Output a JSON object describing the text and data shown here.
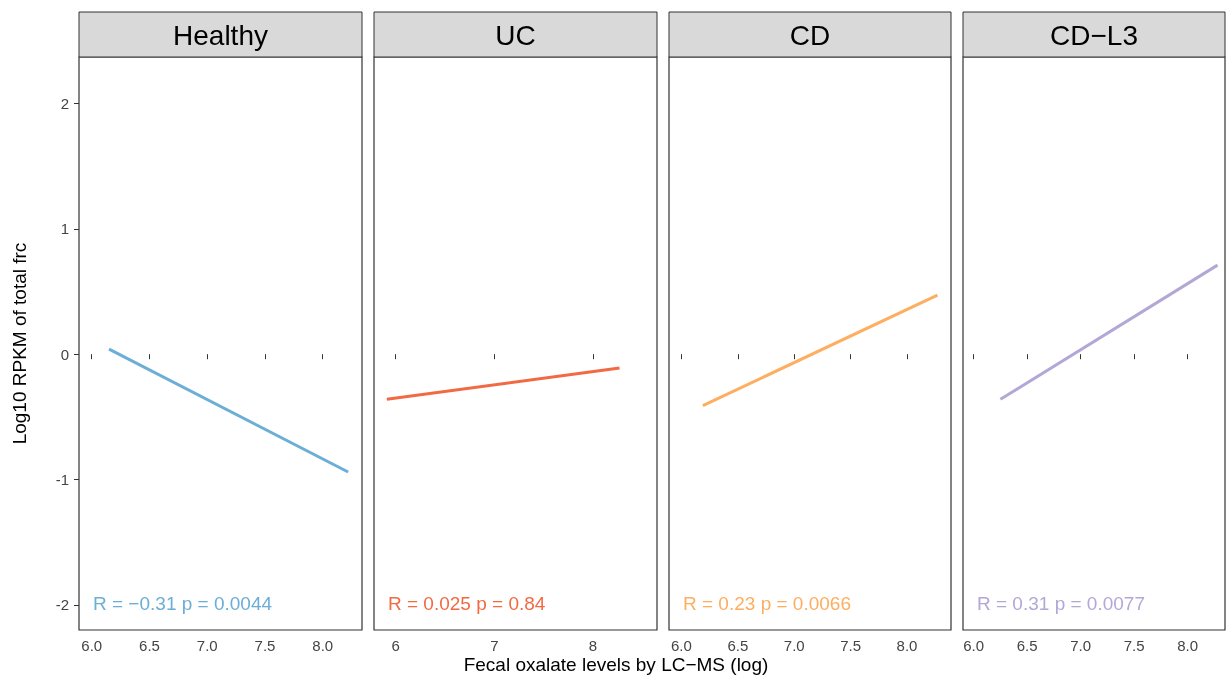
{
  "chart_data": [
    {
      "type": "line",
      "title": "Healthy",
      "ylabel": "Log10 RPKM of total frc",
      "xlabel": "Fecal oxalate levels by LC−MS (log)",
      "xlim": [
        5.89,
        8.34
      ],
      "xticks": [
        {
          "value": 6,
          "label": "6.0"
        },
        6.5,
        {
          "value": 7,
          "label": "7.0"
        },
        7.5,
        {
          "value": 8,
          "label": "8.0"
        }
      ],
      "ylim": [
        -2.2,
        2.37
      ],
      "yticks": [
        -2,
        -1,
        0,
        1,
        2
      ],
      "marker": "none",
      "grid": false,
      "annotations": [
        "R = −0.31 p = 0.0044"
      ],
      "series": [
        {
          "color": "#6baed6",
          "x": [
            6.15,
            8.22
          ],
          "values": [
            0.04,
            -0.94
          ]
        }
      ]
    },
    {
      "type": "line",
      "title": "UC",
      "xlim": [
        5.78,
        8.65
      ],
      "xticks": [
        6,
        7,
        8
      ],
      "ylim": [
        -2.2,
        2.37
      ],
      "yticks": [
        -2,
        -1,
        0,
        1,
        2
      ],
      "tick_labels": "x",
      "marker": "none",
      "grid": false,
      "annotations": [
        "R = 0.025 p = 0.84"
      ],
      "series": [
        {
          "color": "#f16a43",
          "x": [
            5.91,
            8.27
          ],
          "values": [
            -0.36,
            -0.11
          ]
        }
      ]
    },
    {
      "type": "line",
      "title": "CD",
      "xlim": [
        5.89,
        8.39
      ],
      "xticks": [
        {
          "value": 6,
          "label": "6.0"
        },
        6.5,
        {
          "value": 7,
          "label": "7.0"
        },
        7.5,
        {
          "value": 8,
          "label": "8.0"
        }
      ],
      "ylim": [
        -2.2,
        2.37
      ],
      "yticks": [
        -2,
        -1,
        0,
        1,
        2
      ],
      "tick_labels": "x",
      "marker": "none",
      "grid": false,
      "annotations": [
        "R = 0.23 p = 0.0066"
      ],
      "series": [
        {
          "color": "#fdae61",
          "x": [
            6.19,
            8.27
          ],
          "values": [
            -0.41,
            0.47
          ]
        }
      ]
    },
    {
      "type": "line",
      "title": "CD−L3",
      "xlim": [
        5.9,
        8.35
      ],
      "xticks": [
        {
          "value": 6,
          "label": "6.0"
        },
        6.5,
        {
          "value": 7,
          "label": "7.0"
        },
        7.5,
        {
          "value": 8,
          "label": "8.0"
        }
      ],
      "ylim": [
        -2.2,
        2.37
      ],
      "yticks": [
        -2,
        -1,
        0,
        1,
        2
      ],
      "tick_labels": "x",
      "marker": "none",
      "grid": false,
      "annotations": [
        "R = 0.31 p = 0.0077"
      ],
      "series": [
        {
          "color": "#b3a7d6",
          "x": [
            6.25,
            8.28
          ],
          "values": [
            -0.36,
            0.71
          ]
        }
      ]
    }
  ]
}
